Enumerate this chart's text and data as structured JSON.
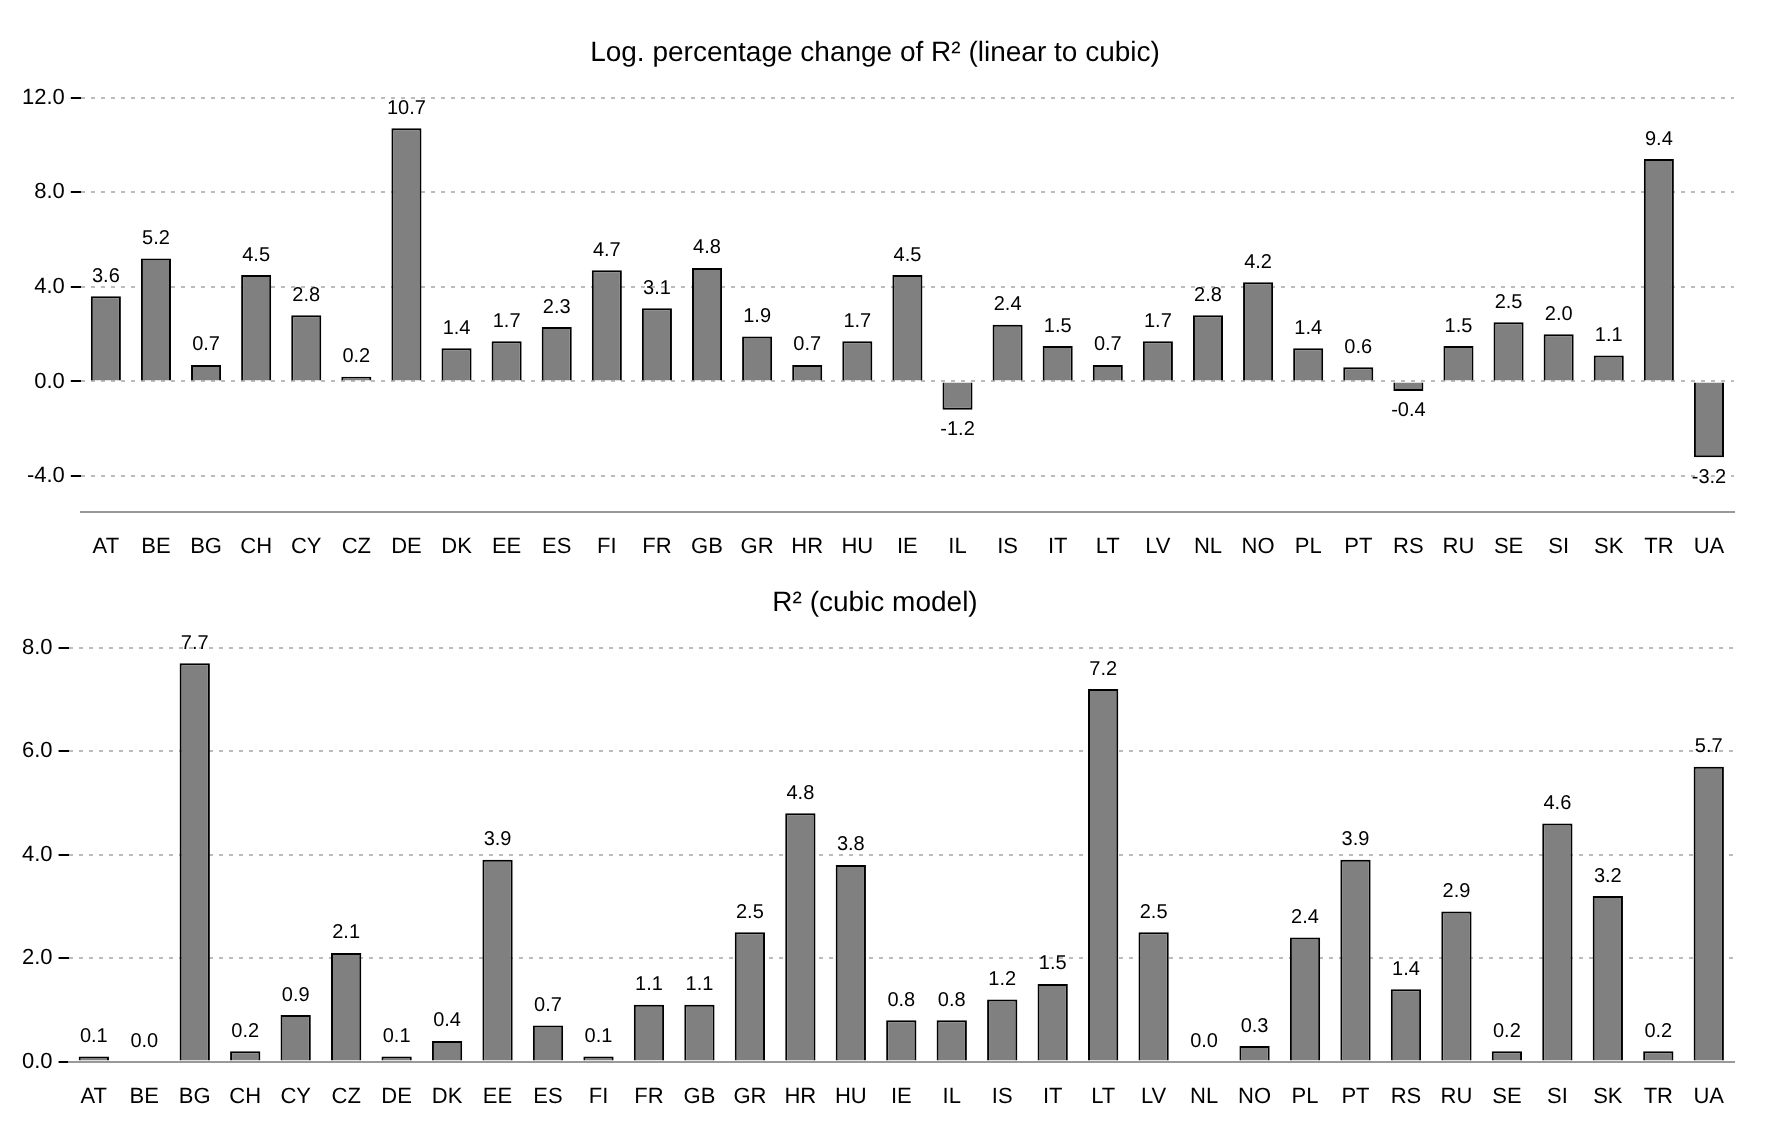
{
  "chart_data": [
    {
      "type": "bar",
      "title": "Log. percentage change of R² (linear to cubic)",
      "categories": [
        "AT",
        "BE",
        "BG",
        "CH",
        "CY",
        "CZ",
        "DE",
        "DK",
        "EE",
        "ES",
        "FI",
        "FR",
        "GB",
        "GR",
        "HR",
        "HU",
        "IE",
        "IL",
        "IS",
        "IT",
        "LT",
        "LV",
        "NL",
        "NO",
        "PL",
        "PT",
        "RS",
        "RU",
        "SE",
        "SI",
        "SK",
        "TR",
        "UA"
      ],
      "values": [
        3.6,
        5.2,
        0.7,
        4.5,
        2.8,
        0.2,
        10.7,
        1.4,
        1.7,
        2.3,
        4.7,
        3.1,
        4.8,
        1.9,
        0.7,
        1.7,
        4.5,
        -1.2,
        2.4,
        1.5,
        0.7,
        1.7,
        2.8,
        4.2,
        1.4,
        0.6,
        -0.4,
        1.5,
        2.5,
        2.0,
        1.1,
        9.4,
        -3.2
      ],
      "value_labels": [
        "3.6",
        "5.2",
        "0.7",
        "4.5",
        "2.8",
        "0.2",
        "10.7",
        "1.4",
        "1.7",
        "2.3",
        "4.7",
        "3.1",
        "4.8",
        "1.9",
        "0.7",
        "1.7",
        "4.5",
        "-1.2",
        "2.4",
        "1.5",
        "0.7",
        "1.7",
        "2.8",
        "4.2",
        "1.4",
        "0.6",
        "-0.4",
        "1.5",
        "2.5",
        "2.0",
        "1.1",
        "9.4",
        "-3.2"
      ],
      "color": "#808080",
      "ylim": [
        -5.5,
        12
      ],
      "yticks": [
        {
          "value": -4,
          "label": "-4.0"
        },
        {
          "value": 0,
          "label": "0.0"
        },
        {
          "value": 4,
          "label": "4.0"
        },
        {
          "value": 8,
          "label": "8.0"
        },
        {
          "value": 12,
          "label": "12.0"
        }
      ],
      "grid": "y",
      "legend": false
    },
    {
      "type": "bar",
      "title": "R² (cubic model)",
      "categories": [
        "AT",
        "BE",
        "BG",
        "CH",
        "CY",
        "CZ",
        "DE",
        "DK",
        "EE",
        "ES",
        "FI",
        "FR",
        "GB",
        "GR",
        "HR",
        "HU",
        "IE",
        "IL",
        "IS",
        "IT",
        "LT",
        "LV",
        "NL",
        "NO",
        "PL",
        "PT",
        "RS",
        "RU",
        "SE",
        "SI",
        "SK",
        "TR",
        "UA"
      ],
      "values": [
        0.1,
        0.0,
        7.7,
        0.2,
        0.9,
        2.1,
        0.1,
        0.4,
        3.9,
        0.7,
        0.1,
        1.1,
        1.1,
        2.5,
        4.8,
        3.8,
        0.8,
        0.8,
        1.2,
        1.5,
        7.2,
        2.5,
        0.0,
        0.3,
        2.4,
        3.9,
        1.4,
        2.9,
        0.2,
        4.6,
        3.2,
        0.2,
        5.7
      ],
      "value_labels": [
        "0.1",
        "0.0",
        "7.7",
        "0.2",
        "0.9",
        "2.1",
        "0.1",
        "0.4",
        "3.9",
        "0.7",
        "0.1",
        "1.1",
        "1.1",
        "2.5",
        "4.8",
        "3.8",
        "0.8",
        "0.8",
        "1.2",
        "1.5",
        "7.2",
        "2.5",
        "0.0",
        "0.3",
        "2.4",
        "3.9",
        "1.4",
        "2.9",
        "0.2",
        "4.6",
        "3.2",
        "0.2",
        "5.7"
      ],
      "color": "#808080",
      "ylim": [
        0,
        8
      ],
      "yticks": [
        {
          "value": 0,
          "label": "0.0"
        },
        {
          "value": 2,
          "label": "2.0"
        },
        {
          "value": 4,
          "label": "4.0"
        },
        {
          "value": 6,
          "label": "6.0"
        },
        {
          "value": 8,
          "label": "8.0"
        }
      ],
      "grid": "y",
      "legend": false
    }
  ]
}
